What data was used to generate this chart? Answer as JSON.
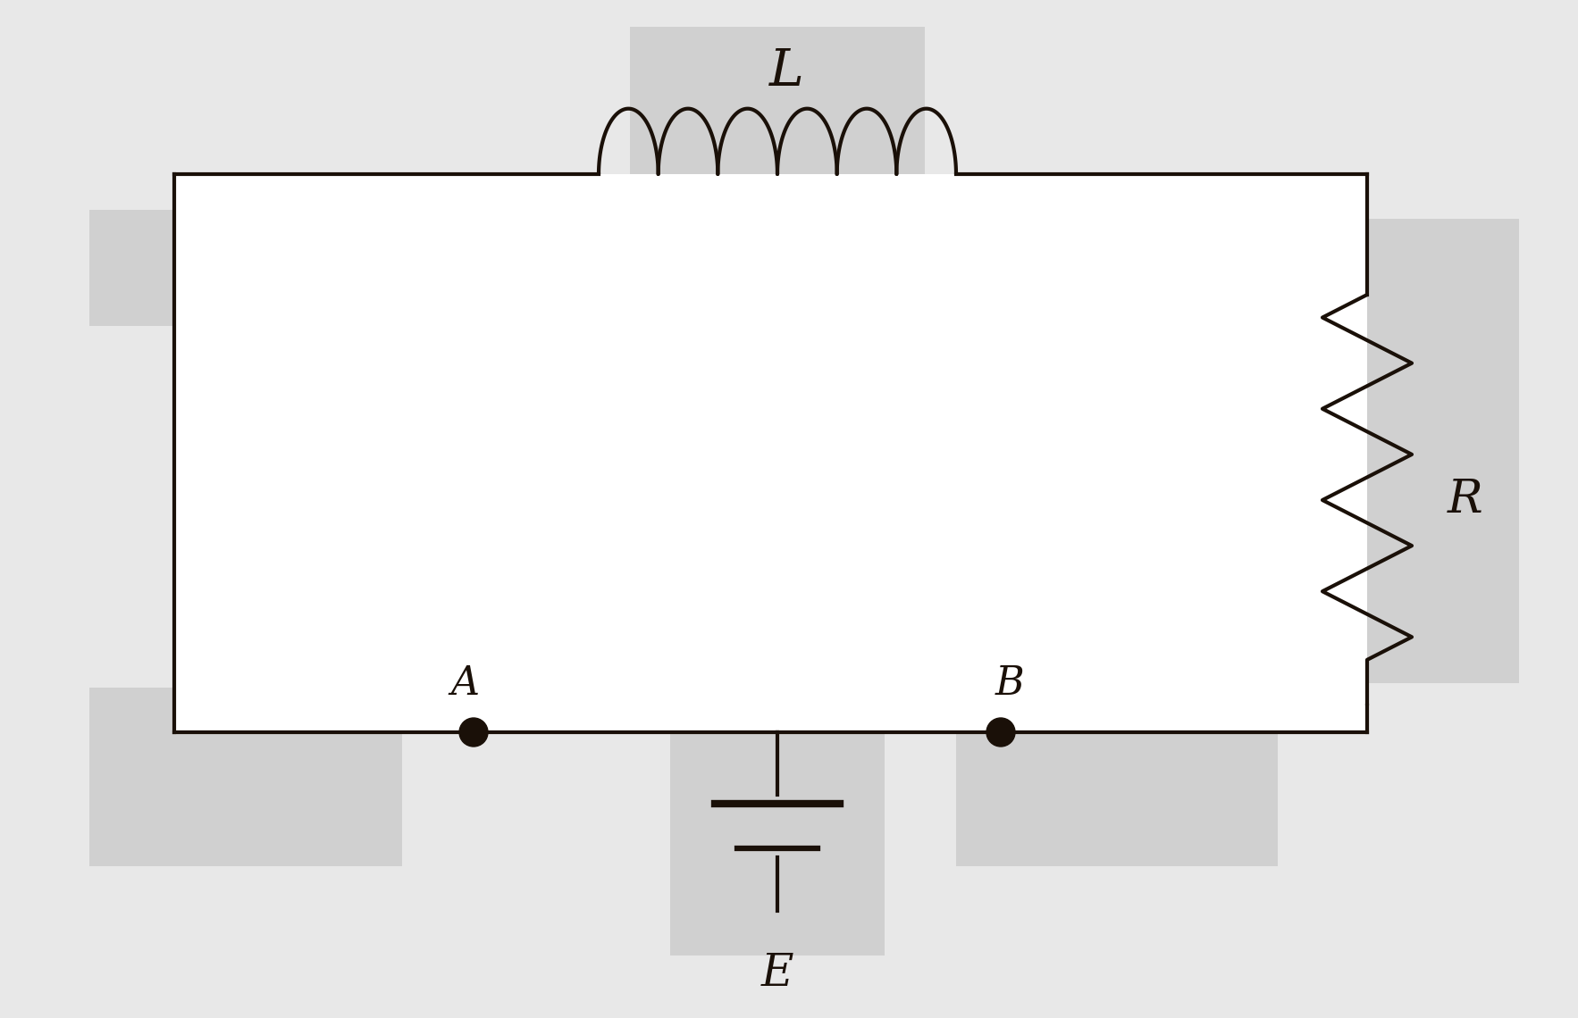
{
  "bg_color": "#e8e8e8",
  "white_color": "#ffffff",
  "line_color": "#1a1008",
  "shadow_color": "#d0d0d0",
  "inductor_label": "L",
  "resistor_label": "R",
  "battery_label": "E",
  "nodeA_label": "A",
  "nodeB_label": "B",
  "font_size_labels": 32,
  "line_width": 3.0,
  "figsize": [
    17.66,
    11.4
  ],
  "dpi": 100
}
